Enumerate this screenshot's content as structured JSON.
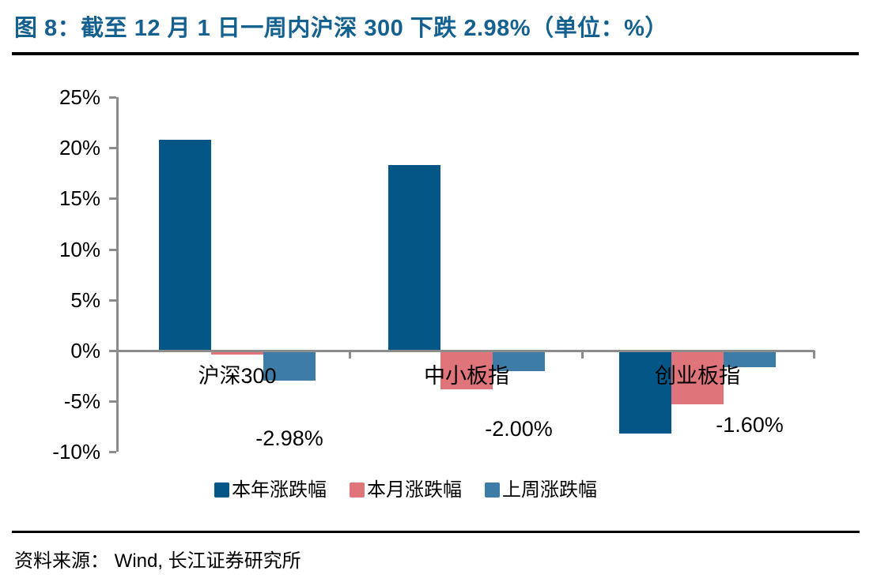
{
  "header": {
    "title": "图 8：截至 12 月 1 日一周内沪深 300 下跌 2.98%（单位：%）"
  },
  "footer": {
    "source": "资料来源： Wind, 长江证券研究所"
  },
  "colors": {
    "title_blue": "#14608F",
    "series_ytd": "#045686",
    "series_month": "#E0747B",
    "series_week": "#3D7CA6",
    "axis_gray": "#8C8C8C",
    "text_black": "#000000"
  },
  "chart_data": {
    "type": "bar",
    "title": "图 8：截至 12 月 1 日一周内沪深 300 下跌 2.98%（单位：%）",
    "unit": "%",
    "categories": [
      "沪深300",
      "中小板指",
      "创业板指"
    ],
    "series": [
      {
        "name": "本年涨跌幅",
        "values": [
          20.8,
          18.3,
          -8.2
        ]
      },
      {
        "name": "本月涨跌幅",
        "values": [
          -0.4,
          -3.8,
          -5.3
        ]
      },
      {
        "name": "上周涨跌幅",
        "values": [
          -2.98,
          -2.0,
          -1.6
        ],
        "labels": [
          "-2.98%",
          "-2.00%",
          "-1.60%"
        ]
      }
    ],
    "y_ticks": [
      25,
      20,
      15,
      10,
      5,
      0,
      -5,
      -10
    ],
    "y_tick_labels": [
      "25%",
      "20%",
      "15%",
      "10%",
      "5%",
      "0%",
      "-5%",
      "-10%"
    ],
    "ylim": [
      -10,
      25
    ],
    "grid": false,
    "legend_position": "bottom",
    "legend": [
      "本年涨跌幅",
      "本月涨跌幅",
      "上周涨跌幅"
    ]
  }
}
